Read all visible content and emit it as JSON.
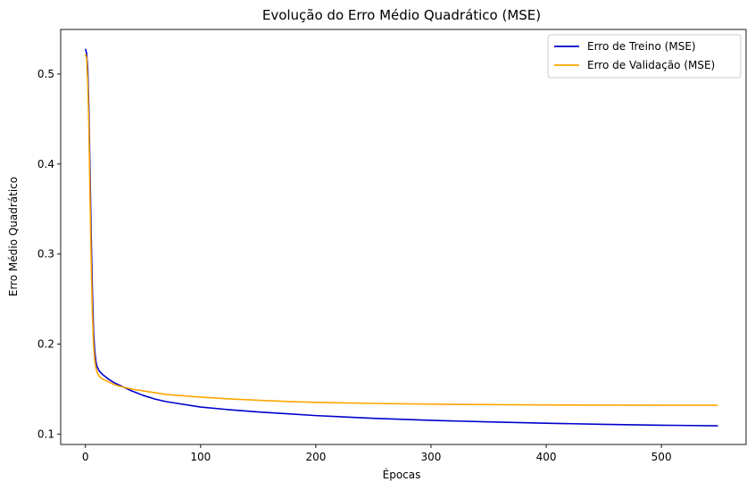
{
  "chart_data": {
    "type": "line",
    "title": "Evolução do Erro Médio Quadrático (MSE)",
    "xlabel": "Épocas",
    "ylabel": "Erro Médio Quadrático",
    "xlim": [
      -21.5,
      573.5
    ],
    "ylim": [
      0.0884,
      0.5495
    ],
    "x_ticks": [
      0,
      100,
      200,
      300,
      400,
      500
    ],
    "y_ticks": [
      0.1,
      0.2,
      0.3,
      0.4,
      0.5
    ],
    "x_tick_labels": [
      "0",
      "100",
      "200",
      "300",
      "400",
      "500"
    ],
    "y_tick_labels": [
      "0.1",
      "0.2",
      "0.3",
      "0.4",
      "0.5"
    ],
    "grid": false,
    "legend_position": "top-right",
    "series": [
      {
        "name": "Erro de Treino (MSE)",
        "color": "#0000cd",
        "x": [
          0,
          1,
          2,
          3,
          4,
          5,
          6,
          7,
          8,
          9,
          10,
          12,
          15,
          20,
          25,
          30,
          40,
          50,
          60,
          70,
          80,
          100,
          125,
          150,
          175,
          200,
          250,
          300,
          350,
          400,
          450,
          500,
          549
        ],
        "y": [
          0.528,
          0.523,
          0.505,
          0.46,
          0.39,
          0.32,
          0.26,
          0.215,
          0.193,
          0.181,
          0.175,
          0.17,
          0.166,
          0.161,
          0.157,
          0.154,
          0.148,
          0.143,
          0.139,
          0.136,
          0.134,
          0.13,
          0.127,
          0.1245,
          0.1225,
          0.1205,
          0.1175,
          0.1152,
          0.1135,
          0.112,
          0.1108,
          0.1098,
          0.1092
        ]
      },
      {
        "name": "Erro de Validação (MSE)",
        "color": "#ffa500",
        "x": [
          0,
          1,
          2,
          3,
          4,
          5,
          6,
          7,
          8,
          9,
          10,
          12,
          15,
          20,
          25,
          30,
          40,
          50,
          60,
          70,
          80,
          100,
          125,
          150,
          175,
          200,
          250,
          300,
          350,
          400,
          450,
          500,
          549
        ],
        "y": [
          0.522,
          0.518,
          0.49,
          0.44,
          0.36,
          0.29,
          0.235,
          0.2,
          0.183,
          0.174,
          0.169,
          0.164,
          0.161,
          0.158,
          0.155,
          0.153,
          0.15,
          0.148,
          0.146,
          0.144,
          0.143,
          0.141,
          0.139,
          0.1375,
          0.1362,
          0.1352,
          0.134,
          0.1332,
          0.1327,
          0.1323,
          0.1321,
          0.132,
          0.132
        ]
      }
    ]
  }
}
